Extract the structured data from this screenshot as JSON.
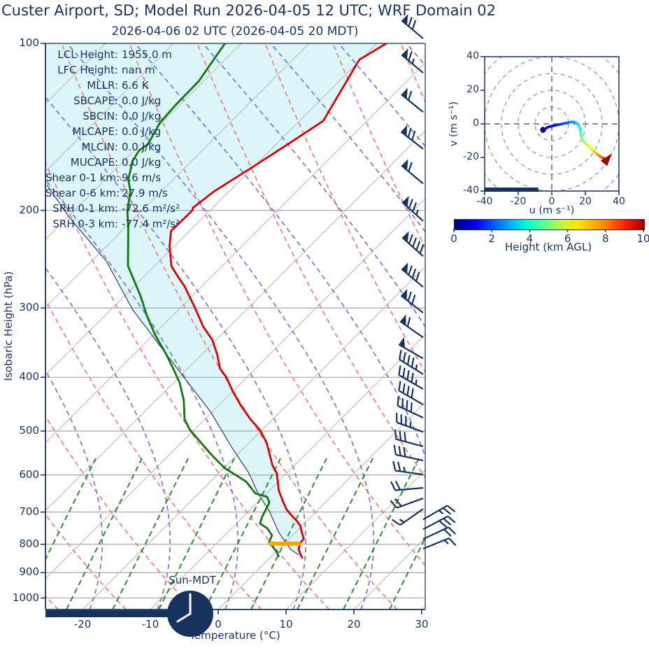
{
  "title": "Custer Airport, SD; Model Run 2026-04-05 12 UTC; WRF Domain 02",
  "subtitle": "2026-04-06 02 UTC  (2026-04-05 20 MDT)",
  "clock_label": "Sun-MDT",
  "colors": {
    "navy": "#16335e",
    "temperature": "#dd0000",
    "dewpoint": "#0b7a0b",
    "parcel": "#22304a",
    "cin_fill": "rgba(175,233,240,0.45)",
    "dry_adiabat": "#f47c7c",
    "moist_adiabat": "#7b7bdf",
    "mixing_ratio": "#2e8b2e",
    "isotherm": "#b8b8b8",
    "gridline": "#a6a6a6",
    "lcl_marker": "#ffa500",
    "hodo_ring": "#999999"
  },
  "stats": [
    {
      "label": "LCL Height:",
      "value": "1955.0 m"
    },
    {
      "label": "LFC Height:",
      "value": "nan m"
    },
    {
      "label": "MLLR:",
      "value": "6.6 K"
    },
    {
      "label": "SBCAPE:",
      "value": "0.0 J/kg"
    },
    {
      "label": "SBCIN:",
      "value": "0.0 J/kg"
    },
    {
      "label": "MLCAPE:",
      "value": "0.0 J/kg"
    },
    {
      "label": "MLCIN:",
      "value": "0.0 J/kg"
    },
    {
      "label": "MUCAPE:",
      "value": "0.0 J/kg"
    },
    {
      "label": "Shear 0-1 km:",
      "value": "9.6 m/s"
    },
    {
      "label": "Shear 0-6 km:",
      "value": "27.9 m/s"
    },
    {
      "label": "SRH 0-1 km:",
      "value": "-72.6 m²/s²"
    },
    {
      "label": "SRH 0-3 km:",
      "value": "-77.4 m²/s²"
    }
  ],
  "skewt": {
    "xlabel": "Temperature (°C)",
    "ylabel": "Isobaric Height (hPa)",
    "x_ticks": [
      -20,
      -10,
      0,
      10,
      20,
      30
    ],
    "y_ticks": [
      100,
      200,
      300,
      400,
      500,
      600,
      700,
      800,
      900,
      1000
    ],
    "y_scale": "log"
  },
  "hodograph": {
    "xlabel": "u (m s⁻¹)",
    "ylabel": "v (m s⁻¹)",
    "x_ticks": [
      -40,
      -20,
      0,
      20,
      40
    ],
    "y_ticks": [
      40,
      20,
      0,
      -20,
      -40
    ],
    "ring_radii": [
      10,
      20,
      30,
      40,
      50
    ]
  },
  "colorbar": {
    "label": "Height (km AGL)",
    "ticks": [
      0,
      2,
      4,
      6,
      8,
      10
    ],
    "min": 0,
    "max": 10
  },
  "chart_data": [
    {
      "type": "line",
      "name": "skew_t_sounding",
      "title": "2026-04-06 02 UTC  (2026-04-05 20 MDT)",
      "xlabel": "Temperature (°C)",
      "ylabel": "Isobaric Height (hPa)",
      "xlim_at_surface": [
        -25.5,
        30.5
      ],
      "ylim": [
        1050,
        100
      ],
      "series": [
        {
          "name": "temperature",
          "units": [
            "hPa",
            "degC"
          ],
          "points": [
            [
              100,
              -58.6
            ],
            [
              107,
              -60.2
            ],
            [
              138,
              -56.5
            ],
            [
              153,
              -58.4
            ],
            [
              167,
              -60.1
            ],
            [
              185,
              -62.2
            ],
            [
              198,
              -62.9
            ],
            [
              200,
              -62.6
            ],
            [
              218,
              -62.7
            ],
            [
              232,
              -60.7
            ],
            [
              252,
              -57.5
            ],
            [
              261,
              -55.5
            ],
            [
              274,
              -52.6
            ],
            [
              299,
              -48.0
            ],
            [
              324,
              -43.9
            ],
            [
              343,
              -40.5
            ],
            [
              364,
              -37.7
            ],
            [
              386,
              -35.2
            ],
            [
              400,
              -33.0
            ],
            [
              424,
              -30.0
            ],
            [
              449,
              -26.8
            ],
            [
              476,
              -23.3
            ],
            [
              497,
              -20.4
            ],
            [
              524,
              -17.5
            ],
            [
              577,
              -13.2
            ],
            [
              595,
              -11.5
            ],
            [
              616,
              -10.1
            ],
            [
              640,
              -8.6
            ],
            [
              672,
              -6.2
            ],
            [
              692,
              -4.7
            ],
            [
              706,
              -3.4
            ],
            [
              727,
              -1.4
            ],
            [
              740,
              -0.3
            ],
            [
              762,
              1.0
            ],
            [
              782,
              2.2
            ],
            [
              796,
              2.3
            ],
            [
              817,
              3.0
            ],
            [
              836,
              4.1
            ],
            [
              848,
              4.9
            ]
          ]
        },
        {
          "name": "dewpoint",
          "units": [
            "hPa",
            "degC"
          ],
          "points": [
            [
              100,
              -82.4
            ],
            [
              117,
              -80.7
            ],
            [
              129,
              -80.6
            ],
            [
              139,
              -80.3
            ],
            [
              152,
              -78.9
            ],
            [
              156,
              -79.3
            ],
            [
              163,
              -78.7
            ],
            [
              169,
              -77.7
            ],
            [
              176,
              -76.6
            ],
            [
              185,
              -74.5
            ],
            [
              200,
              -72.2
            ],
            [
              215,
              -69.5
            ],
            [
              252,
              -63.9
            ],
            [
              285,
              -57.7
            ],
            [
              311,
              -53.6
            ],
            [
              337,
              -49.5
            ],
            [
              364,
              -45.2
            ],
            [
              386,
              -42.1
            ],
            [
              409,
              -39.1
            ],
            [
              440,
              -35.9
            ],
            [
              476,
              -33.0
            ],
            [
              497,
              -30.7
            ],
            [
              550,
              -24.0
            ],
            [
              583,
              -19.9
            ],
            [
              617,
              -14.7
            ],
            [
              648,
              -11.6
            ],
            [
              657,
              -9.4
            ],
            [
              673,
              -8.2
            ],
            [
              713,
              -7.2
            ],
            [
              734,
              -6.5
            ],
            [
              749,
              -4.7
            ],
            [
              771,
              -3.0
            ],
            [
              794,
              -2.4
            ],
            [
              807,
              -1.3
            ],
            [
              824,
              0.0
            ],
            [
              843,
              1.2
            ]
          ]
        },
        {
          "name": "parcel_path",
          "units": [
            "hPa",
            "degC"
          ],
          "points": [
            [
              836,
              3.8
            ],
            [
              817,
              1.8
            ],
            [
              762,
              -2.4
            ],
            [
              698,
              -6.9
            ],
            [
              648,
              -11.2
            ],
            [
              594,
              -15.7
            ],
            [
              534,
              -22.0
            ],
            [
              462,
              -30.2
            ],
            [
              391,
              -40.7
            ],
            [
              302,
              -56.8
            ],
            [
              247,
              -67.8
            ],
            [
              206,
              -79.7
            ],
            [
              180,
              -87.8
            ]
          ]
        }
      ],
      "lcl_marker": {
        "pressure": 798,
        "t_min": -2.0,
        "t_max": 2.2
      },
      "wind_barbs": [
        {
          "p": 98,
          "angle": 140,
          "pennants": 1,
          "full": 2,
          "half": 0
        },
        {
          "p": 113,
          "angle": 140,
          "pennants": 1,
          "full": 1,
          "half": 1
        },
        {
          "p": 133,
          "angle": 141,
          "pennants": 1,
          "full": 1,
          "half": 0
        },
        {
          "p": 155,
          "angle": 142,
          "pennants": 1,
          "full": 2,
          "half": 0
        },
        {
          "p": 179,
          "angle": 140,
          "pennants": 1,
          "full": 1,
          "half": 0
        },
        {
          "p": 209,
          "angle": 138,
          "pennants": 1,
          "full": 2,
          "half": 1
        },
        {
          "p": 242,
          "angle": 138,
          "pennants": 1,
          "full": 4,
          "half": 0
        },
        {
          "p": 275,
          "angle": 140,
          "pennants": 1,
          "full": 3,
          "half": 0
        },
        {
          "p": 306,
          "angle": 142,
          "pennants": 1,
          "full": 2,
          "half": 0
        },
        {
          "p": 339,
          "angle": 145,
          "pennants": 1,
          "full": 1,
          "half": 0
        },
        {
          "p": 370,
          "angle": 150,
          "pennants": 1,
          "full": 0,
          "half": 0
        },
        {
          "p": 395,
          "angle": 148,
          "pennants": 0,
          "full": 4,
          "half": 1
        },
        {
          "p": 420,
          "angle": 150,
          "pennants": 0,
          "full": 4,
          "half": 1
        },
        {
          "p": 448,
          "angle": 150,
          "pennants": 0,
          "full": 4,
          "half": 0
        },
        {
          "p": 473,
          "angle": 155,
          "pennants": 0,
          "full": 4,
          "half": 0
        },
        {
          "p": 502,
          "angle": 160,
          "pennants": 0,
          "full": 3,
          "half": 1
        },
        {
          "p": 533,
          "angle": 165,
          "pennants": 0,
          "full": 3,
          "half": 0
        },
        {
          "p": 565,
          "angle": 168,
          "pennants": 0,
          "full": 3,
          "half": 0
        },
        {
          "p": 599,
          "angle": 172,
          "pennants": 0,
          "full": 2,
          "half": 1
        },
        {
          "p": 633,
          "angle": 185,
          "pennants": 0,
          "full": 2,
          "half": 0
        },
        {
          "p": 661,
          "angle": 200,
          "pennants": 0,
          "full": 2,
          "half": 0
        },
        {
          "p": 691,
          "angle": 215,
          "pennants": 0,
          "full": 1,
          "half": 1
        },
        {
          "p": 722,
          "angle": 30,
          "pennants": 0,
          "full": 2,
          "half": 1
        },
        {
          "p": 752,
          "angle": 28,
          "pennants": 0,
          "full": 3,
          "half": 0
        },
        {
          "p": 783,
          "angle": 25,
          "pennants": 0,
          "full": 2,
          "half": 0
        },
        {
          "p": 815,
          "angle": 22,
          "pennants": 0,
          "full": 1,
          "half": 1
        }
      ]
    },
    {
      "type": "line",
      "name": "hodograph",
      "xlabel": "u (m s⁻¹)",
      "ylabel": "v (m s⁻¹)",
      "xlim": [
        -40,
        40
      ],
      "ylim": [
        -40,
        40
      ],
      "color_by": "height_km_agl",
      "trace": [
        [
          -4.5,
          -3.0,
          0.0
        ],
        [
          -5.5,
          -2.5,
          0.1
        ],
        [
          -6.2,
          -3.5,
          0.2
        ],
        [
          -5.6,
          -4.6,
          0.3
        ],
        [
          -4.6,
          -4.3,
          0.4
        ],
        [
          -4.2,
          -3.3,
          0.5
        ],
        [
          -3.0,
          -2.3,
          0.7
        ],
        [
          -1.5,
          -1.7,
          0.9
        ],
        [
          0.5,
          -1.2,
          1.1
        ],
        [
          2.5,
          -0.8,
          1.4
        ],
        [
          5.0,
          -0.3,
          1.7
        ],
        [
          7.5,
          0.3,
          2.0
        ],
        [
          10.0,
          0.8,
          2.3
        ],
        [
          12.0,
          1.2,
          2.6
        ],
        [
          13.8,
          1.0,
          2.9
        ],
        [
          15.2,
          0.2,
          3.2
        ],
        [
          16.2,
          -1.2,
          3.5
        ],
        [
          16.9,
          -3.0,
          3.8
        ],
        [
          17.2,
          -4.8,
          4.1
        ],
        [
          17.4,
          -6.6,
          4.4
        ],
        [
          17.9,
          -8.5,
          4.7
        ],
        [
          18.8,
          -10.2,
          5.0
        ],
        [
          20.2,
          -11.8,
          5.4
        ],
        [
          21.8,
          -13.2,
          5.8
        ],
        [
          23.5,
          -14.8,
          6.2
        ],
        [
          25.2,
          -16.4,
          6.6
        ],
        [
          27.0,
          -18.0,
          7.0
        ],
        [
          28.7,
          -19.3,
          7.5
        ],
        [
          30.3,
          -20.3,
          8.0
        ],
        [
          31.8,
          -20.9,
          8.6
        ],
        [
          33.0,
          -21.1,
          9.2
        ],
        [
          33.4,
          -20.6,
          10.0
        ]
      ],
      "surface_bar_u": [
        -40,
        -8
      ]
    }
  ]
}
